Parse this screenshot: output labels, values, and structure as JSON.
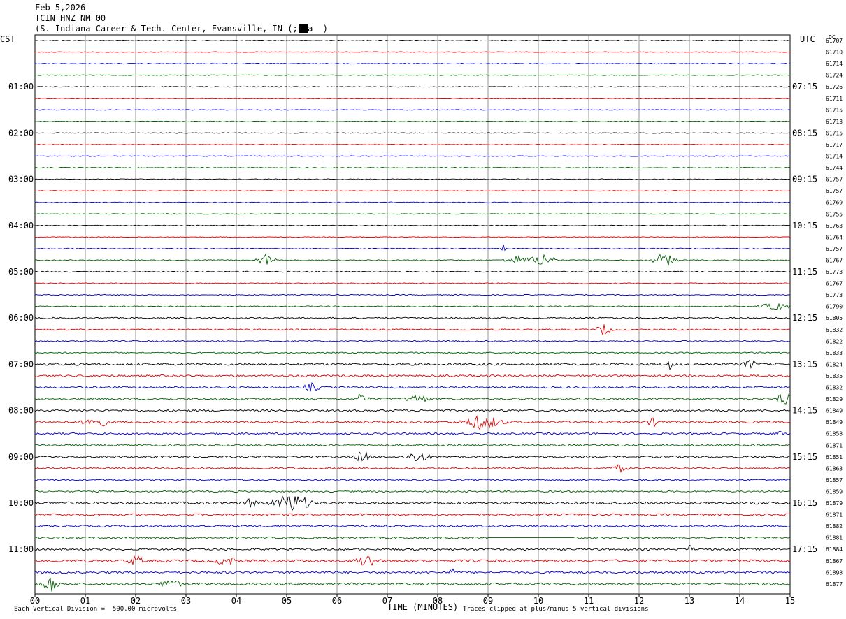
{
  "header": {
    "date": "Feb 5,2026",
    "station": "TCIN HNZ NM 00",
    "location": "(S. Indiana Career & Tech. Center, Evansville, IN (;  a  )"
  },
  "labels": {
    "left_tz": "CST",
    "right_tz": "UTC",
    "dc_label": "DC",
    "xlabel": "TIME (MINUTES)",
    "scale_note": "Each Vertical Division =  500.00 microvolts",
    "clip_note": "Traces clipped at plus/minus 5 vertical divisions"
  },
  "colors": {
    "trace_cycle": [
      "#000000",
      "#e00000",
      "#0000d0",
      "#006000"
    ],
    "grid": "#7a7a7a",
    "frame": "#000000"
  },
  "chart_data": {
    "type": "line",
    "title": "",
    "xlabel": "TIME (MINUTES)",
    "xlim": [
      0,
      15
    ],
    "x_ticks": [
      "00",
      "01",
      "02",
      "03",
      "04",
      "05",
      "06",
      "07",
      "08",
      "09",
      "10",
      "11",
      "12",
      "13",
      "14",
      "15"
    ],
    "rows_per_hour": 4,
    "row_count": 48,
    "left_hour_labels": [
      "01:00",
      "02:00",
      "03:00",
      "04:00",
      "05:00",
      "06:00",
      "07:00",
      "08:00",
      "09:00",
      "10:00",
      "11:00"
    ],
    "right_hour_labels": [
      "07:15",
      "08:15",
      "09:15",
      "10:15",
      "11:15",
      "12:15",
      "13:15",
      "14:15",
      "15:15",
      "16:15",
      "17:15"
    ],
    "dc_offsets": [
      "61707",
      "61710",
      "61714",
      "61724",
      "61726",
      "61711",
      "61715",
      "61713",
      "61715",
      "61717",
      "61714",
      "61744",
      "61757",
      "61757",
      "61769",
      "61755",
      "61763",
      "61764",
      "61757",
      "61767",
      "61773",
      "61767",
      "61773",
      "61790",
      "61805",
      "61832",
      "61822",
      "61833",
      "61824",
      "61835",
      "61832",
      "61829",
      "61849",
      "61849",
      "61858",
      "61871",
      "61851",
      "61863",
      "61857",
      "61859",
      "61879",
      "61871",
      "61882",
      "61881",
      "61884",
      "61867",
      "61898",
      "61877"
    ],
    "noise_amplitude": [
      0.6,
      0.6,
      0.6,
      0.6,
      0.6,
      0.5,
      0.6,
      0.6,
      0.6,
      0.5,
      0.6,
      0.6,
      0.6,
      0.6,
      0.6,
      0.6,
      0.6,
      0.6,
      0.7,
      0.8,
      0.8,
      0.7,
      0.7,
      0.8,
      1.0,
      1.0,
      0.9,
      0.9,
      1.6,
      1.5,
      1.3,
      1.4,
      1.4,
      1.6,
      1.3,
      1.3,
      1.4,
      1.2,
      1.1,
      1.1,
      1.8,
      1.4,
      1.4,
      1.4,
      1.4,
      1.8,
      1.5,
      1.7
    ],
    "events": [
      {
        "row": 19,
        "minute": 4.6,
        "amplitude": 9,
        "duration": 0.25
      },
      {
        "row": 19,
        "minute": 9.6,
        "amplitude": 6,
        "duration": 0.35
      },
      {
        "row": 19,
        "minute": 10.1,
        "amplitude": 10,
        "duration": 0.3
      },
      {
        "row": 19,
        "minute": 12.5,
        "amplitude": 10,
        "duration": 0.3
      },
      {
        "row": 18,
        "minute": 9.3,
        "amplitude": 7,
        "duration": 0.05
      },
      {
        "row": 23,
        "minute": 14.7,
        "amplitude": 5,
        "duration": 0.4
      },
      {
        "row": 25,
        "minute": 11.3,
        "amplitude": 8,
        "duration": 0.2
      },
      {
        "row": 28,
        "minute": 12.6,
        "amplitude": 7,
        "duration": 0.1
      },
      {
        "row": 28,
        "minute": 14.2,
        "amplitude": 6,
        "duration": 0.2
      },
      {
        "row": 30,
        "minute": 5.5,
        "amplitude": 6,
        "duration": 0.2
      },
      {
        "row": 31,
        "minute": 6.5,
        "amplitude": 9,
        "duration": 0.15
      },
      {
        "row": 31,
        "minute": 7.6,
        "amplitude": 6,
        "duration": 0.3
      },
      {
        "row": 31,
        "minute": 14.9,
        "amplitude": 10,
        "duration": 0.2
      },
      {
        "row": 33,
        "minute": 1.2,
        "amplitude": 9,
        "duration": 0.3
      },
      {
        "row": 33,
        "minute": 8.9,
        "amplitude": 10,
        "duration": 0.5
      },
      {
        "row": 33,
        "minute": 12.3,
        "amplitude": 5,
        "duration": 0.2
      },
      {
        "row": 34,
        "minute": 14.8,
        "amplitude": 6,
        "duration": 0.05
      },
      {
        "row": 36,
        "minute": 6.5,
        "amplitude": 8,
        "duration": 0.2
      },
      {
        "row": 36,
        "minute": 7.6,
        "amplitude": 8,
        "duration": 0.3
      },
      {
        "row": 37,
        "minute": 11.6,
        "amplitude": 5,
        "duration": 0.2
      },
      {
        "row": 40,
        "minute": 5.1,
        "amplitude": 13,
        "duration": 0.5
      },
      {
        "row": 40,
        "minute": 4.3,
        "amplitude": 6,
        "duration": 0.2
      },
      {
        "row": 44,
        "minute": 13.0,
        "amplitude": 6,
        "duration": 0.1
      },
      {
        "row": 45,
        "minute": 3.8,
        "amplitude": 7,
        "duration": 0.25
      },
      {
        "row": 45,
        "minute": 6.6,
        "amplitude": 9,
        "duration": 0.3
      },
      {
        "row": 45,
        "minute": 2.0,
        "amplitude": 7,
        "duration": 0.2
      },
      {
        "row": 46,
        "minute": 8.3,
        "amplitude": 5,
        "duration": 0.1
      },
      {
        "row": 47,
        "minute": 0.3,
        "amplitude": 14,
        "duration": 0.2
      },
      {
        "row": 47,
        "minute": 2.7,
        "amplitude": 7,
        "duration": 0.25
      }
    ],
    "gaps": [
      {
        "row": 43,
        "start_minute": 9.0,
        "end_minute": 10.7
      }
    ],
    "grid": "vertical"
  }
}
